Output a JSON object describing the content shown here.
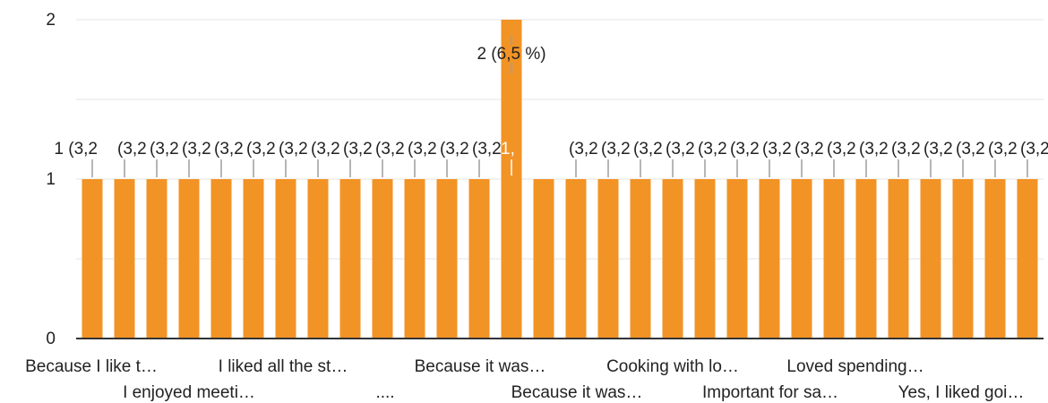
{
  "chart_data": {
    "type": "bar",
    "categories": [
      "Because I like t…",
      "I enjoyed meeti…",
      "",
      "",
      "",
      "",
      "I liked all the st…",
      "",
      "",
      "",
      "....",
      "",
      "",
      "Because it was…",
      "Because it was…",
      "",
      "",
      "Cooking with lo…",
      "",
      "Important for sa…",
      "",
      "",
      "Loved spending…",
      "",
      "",
      "",
      "Yes, I liked goi…",
      "",
      "",
      ""
    ],
    "values": [
      1,
      1,
      1,
      1,
      1,
      1,
      1,
      1,
      1,
      1,
      1,
      1,
      1,
      2,
      1,
      1,
      1,
      1,
      1,
      1,
      1,
      1,
      1,
      1,
      1,
      1,
      1,
      1,
      1,
      1
    ],
    "data_labels": [
      "1 (3,2",
      "(3,2",
      "(3,2",
      "(3,2",
      "(3,2",
      "(3,2",
      "(3,2",
      "(3,2",
      "(3,2",
      "(3,2",
      "(3,2",
      "(3,2",
      "(3,2",
      "2 (6,5 %)",
      "1,",
      "(3,2",
      "(3,2",
      "(3,2",
      "(3,2",
      "(3,2",
      "(3,2",
      "(3,2",
      "(3,2",
      "(3,2",
      "(3,2",
      "(3,2",
      "(3,2",
      "(3,2",
      "(3,2",
      "(3,2"
    ],
    "yticks": [
      "0",
      "1",
      "2"
    ],
    "ylim": [
      0,
      2
    ],
    "grid": true,
    "colors": {
      "bar": "#f29326",
      "grid": "#e6e6e6",
      "axis": "#333333",
      "text": "#222222"
    }
  }
}
